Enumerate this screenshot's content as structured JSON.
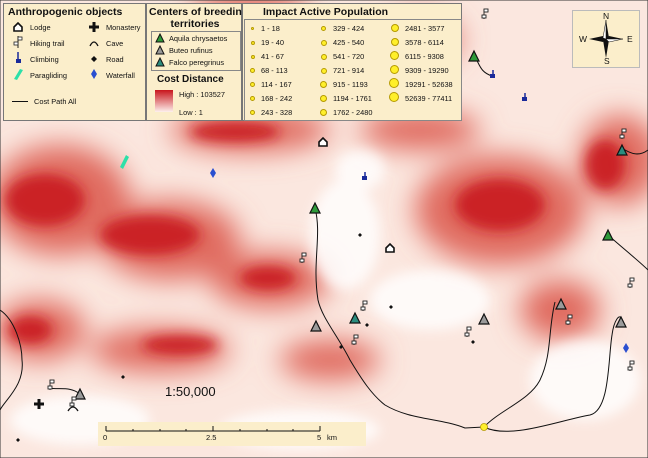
{
  "map": {
    "scale_ratio": "1:50,000",
    "scalebar": {
      "ticks": [
        "0",
        "2.5",
        "5"
      ],
      "unit": "km"
    }
  },
  "legend_anthropogenic": {
    "title": "Anthropogenic objects",
    "items": [
      {
        "label": "Lodge",
        "icon": "lodge-icon"
      },
      {
        "label": "Monastery",
        "icon": "cross-icon"
      },
      {
        "label": "Hiking trail",
        "icon": "trail-sign-icon"
      },
      {
        "label": "Cave",
        "icon": "cave-icon"
      },
      {
        "label": "Climbing",
        "icon": "climbing-icon"
      },
      {
        "label": "Road",
        "icon": "road-diamond-icon"
      },
      {
        "label": "Paragliding",
        "icon": "paraglider-icon"
      },
      {
        "label": "Waterfall",
        "icon": "waterfall-icon"
      }
    ],
    "cost_path": "Cost Path All"
  },
  "legend_breeding": {
    "title_line1": "Centers of breeding",
    "title_line2": "territories",
    "items": [
      {
        "label": "Aquila chrysaetos",
        "color": "#2e9a3a"
      },
      {
        "label": "Buteo rufinus",
        "color": "#9a9a9a"
      },
      {
        "label": "Falco peregrinus",
        "color": "#2b8c7e"
      }
    ]
  },
  "legend_cost": {
    "title": "Cost Distance",
    "high": "High : 103527",
    "low": "Low : 1",
    "colors": {
      "high": "#c8151c",
      "low": "#fdf0ec"
    }
  },
  "legend_impact": {
    "title": "Impact Active Population",
    "columns": [
      [
        "1 - 18",
        "19 - 40",
        "41 - 67",
        "68 - 113",
        "114 - 167",
        "168 - 242",
        "243 - 328"
      ],
      [
        "329 - 424",
        "425 - 540",
        "541 - 720",
        "721 - 914",
        "915 - 1193",
        "1194 - 1761",
        "1762 - 2480"
      ],
      [
        "2481 - 3577",
        "3578 - 6114",
        "6115 - 9308",
        "9309 - 19290",
        "19291 - 52638",
        "52639 - 77411"
      ]
    ],
    "dot_color": "#ffef2a"
  },
  "north_arrow": {
    "n": "N",
    "s": "S",
    "e": "E",
    "w": "W"
  }
}
